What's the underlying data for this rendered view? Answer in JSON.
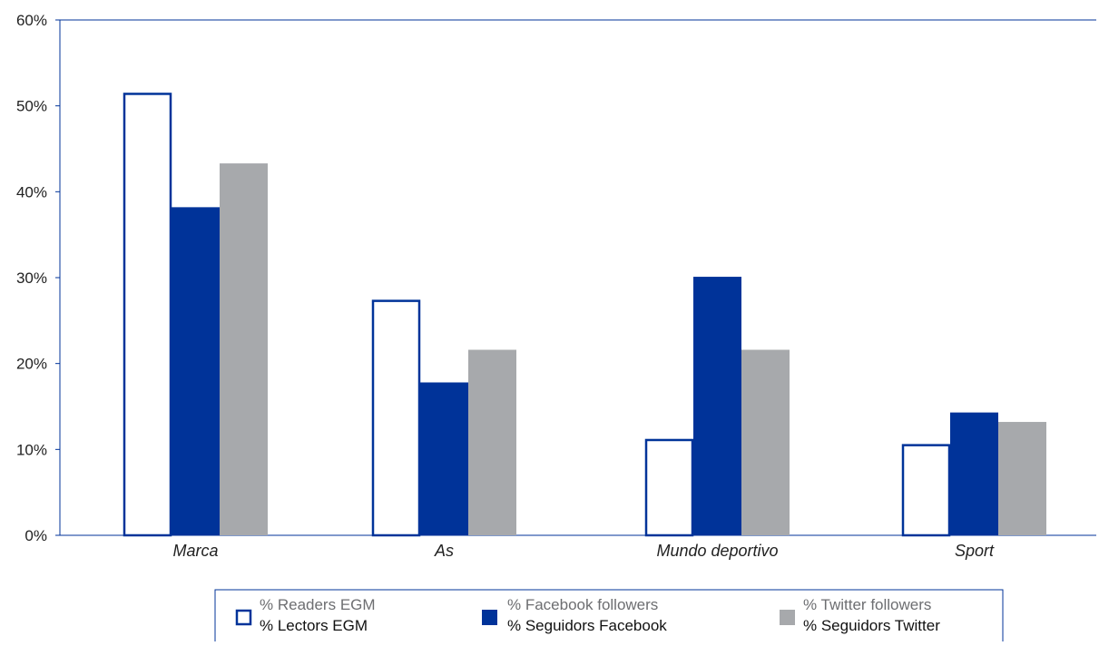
{
  "chart_data": {
    "type": "bar",
    "title": "",
    "xlabel": "",
    "ylabel": "",
    "categories": [
      "Marca",
      "As",
      "Mundo deportivo",
      "Sport"
    ],
    "ylim": [
      0,
      60
    ],
    "y_ticks": [
      0,
      10,
      20,
      30,
      40,
      50,
      60
    ],
    "y_tick_labels": [
      "0%",
      "10%",
      "20%",
      "30%",
      "40%",
      "50%",
      "60%"
    ],
    "grid": false,
    "legend_position": "bottom",
    "series": [
      {
        "name": "% Readers EGM",
        "name_secondary": "% Lectors EGM",
        "style": "outline",
        "color": "#003399",
        "values": [
          51.5,
          27.4,
          11.2,
          10.6
        ]
      },
      {
        "name": "% Facebook followers",
        "name_secondary": "% Seguidors Facebook",
        "style": "filled",
        "color": "#003399",
        "values": [
          38.2,
          17.8,
          30.1,
          14.3
        ]
      },
      {
        "name": "% Twitter followers",
        "name_secondary": "% Seguidors Twitter",
        "style": "filled",
        "color": "#a7a9ac",
        "values": [
          43.3,
          21.6,
          21.6,
          13.2
        ]
      }
    ]
  },
  "colors": {
    "axis": "#003399",
    "text": "#222222",
    "legend_primary_text": "#6d6e71",
    "legend_secondary_text": "#111111",
    "background": "#ffffff"
  }
}
